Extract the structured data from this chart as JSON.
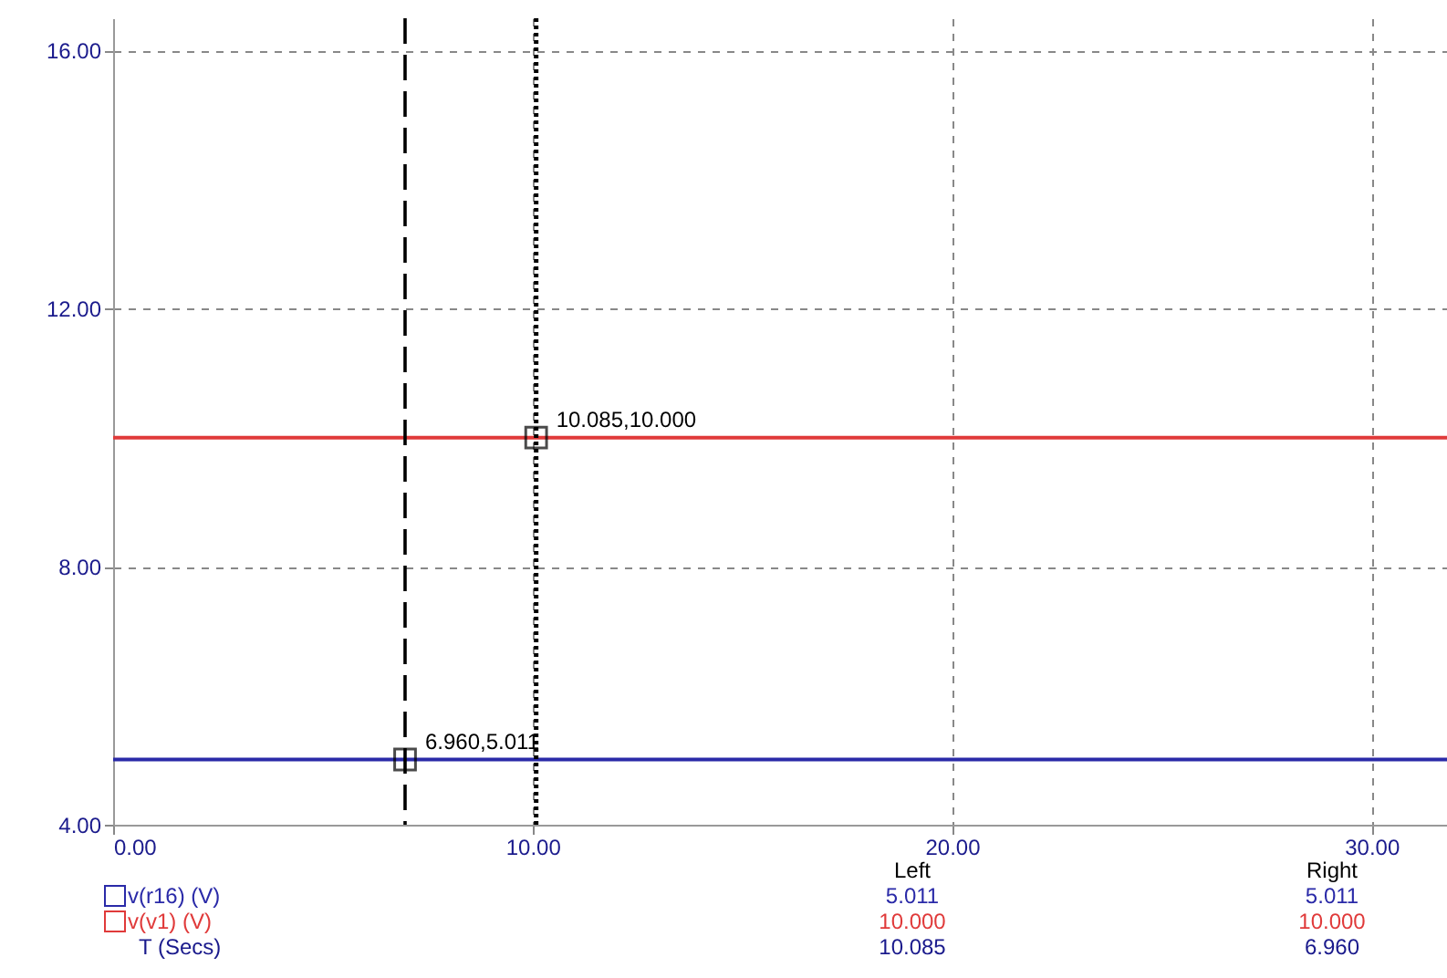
{
  "chart_data": {
    "type": "line",
    "x": [
      0,
      31.8
    ],
    "series": [
      {
        "name": "v(r16) (V)",
        "color": "#2a2aa8",
        "values": [
          5.011,
          5.011
        ]
      },
      {
        "name": "v(v1) (V)",
        "color": "#e03a3a",
        "values": [
          10.0,
          10.0
        ]
      }
    ],
    "xlim": [
      0,
      31.8
    ],
    "ylim": [
      4,
      16.5
    ],
    "xticks": [
      {
        "value": 0,
        "label": "0.00"
      },
      {
        "value": 10,
        "label": "10.00"
      },
      {
        "value": 20,
        "label": "20.00"
      },
      {
        "value": 30,
        "label": "30.00"
      }
    ],
    "yticks": [
      {
        "value": 4,
        "label": "4.00"
      },
      {
        "value": 8,
        "label": "8.00"
      },
      {
        "value": 12,
        "label": "12.00"
      },
      {
        "value": 16,
        "label": "16.00"
      }
    ],
    "grid": true,
    "legend": "bottom",
    "marker": "none",
    "line_style": "solid",
    "ref_lines": [
      {
        "axis": "x",
        "value": 6.96,
        "color": "#000000",
        "line_style": "dashed"
      },
      {
        "axis": "x",
        "value": 10.085,
        "color": "#000000",
        "line_style": "dotted"
      }
    ],
    "annotations": [
      {
        "text": "10.085,10.000",
        "x": 10.085,
        "y": 10.0
      },
      {
        "text": "6.960,5.011",
        "x": 6.96,
        "y": 5.011
      },
      "Left",
      "Right",
      "5.011",
      "5.011",
      "10.000",
      "10.000",
      "T (Secs)",
      "10.085",
      "6.960"
    ]
  }
}
